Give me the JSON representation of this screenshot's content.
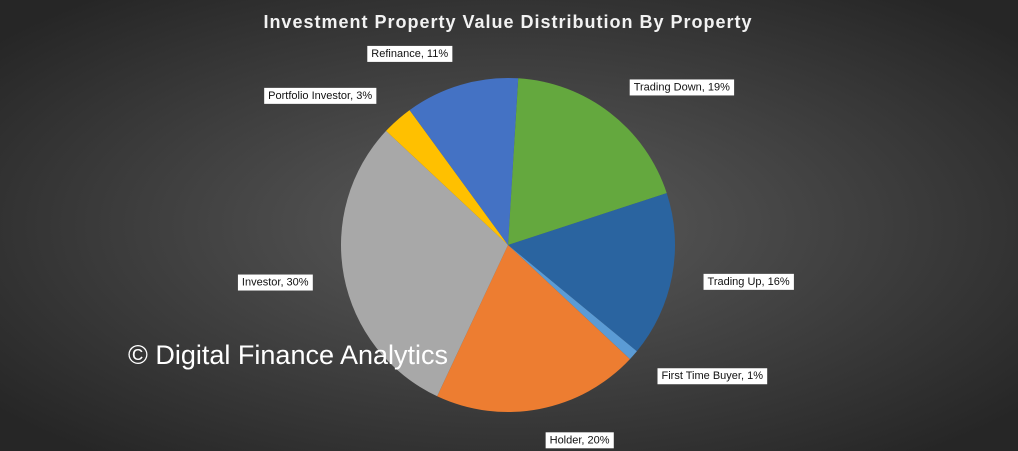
{
  "chart_data": {
    "type": "pie",
    "title": "Investment Property Value Distribution By Property",
    "categories": [
      "Trading Down",
      "Trading Up",
      "First Time Buyer",
      "Holder",
      "Investor",
      "Portfolio Investor",
      "Refinance"
    ],
    "values": [
      19,
      16,
      1,
      20,
      30,
      3,
      11
    ],
    "value_labels": [
      "Trading Down, 19%",
      "Trading Up, 16%",
      "First Time Buyer, 1%",
      "Holder, 20%",
      "Investor, 30%",
      "Portfolio Investor, 3%",
      "Refinance, 11%"
    ],
    "colors": [
      "#64a83e",
      "#2a64a0",
      "#5b9bd5",
      "#ed7d31",
      "#a8a8a8",
      "#ffc000",
      "#4472c4"
    ],
    "annotation": "© Digital Finance Analytics"
  }
}
